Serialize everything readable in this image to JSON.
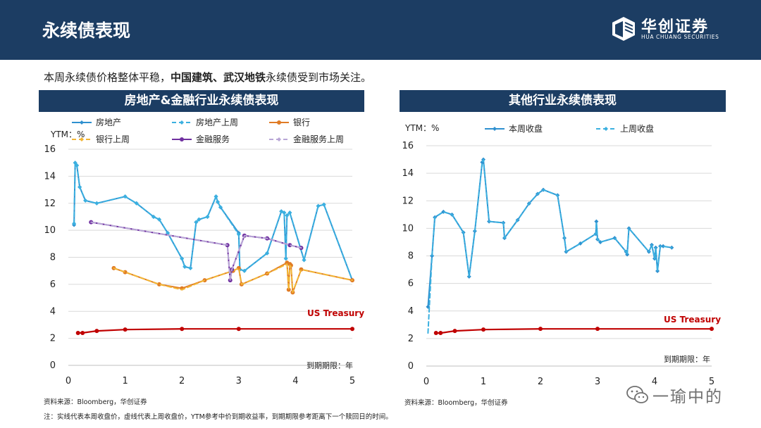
{
  "header": {
    "title": "永续债表现"
  },
  "logo": {
    "cn": "华创证券",
    "en": "HUA CHUANG SECURITIES"
  },
  "intro": {
    "part1": "本周永续债价格整体平稳，",
    "bold": "中国建筑、武汉地铁",
    "part2": "永续债受到市场关注。"
  },
  "colors": {
    "navy": "#1c3d63",
    "blue": "#2e90cf",
    "blue_light": "#3bb0e0",
    "orange": "#e07b24",
    "yellow": "#f2b535",
    "purple": "#7030a0",
    "lavender": "#b8a6d6",
    "red": "#c00000"
  },
  "chart_data": [
    {
      "type": "line",
      "title": "房地产&金融行业永续债表现",
      "ylabel": "YTM：%",
      "xlabel": "到期期限：年",
      "xlim": [
        0,
        5
      ],
      "ylim": [
        0,
        16
      ],
      "xticks": [
        0,
        1,
        2,
        3,
        4,
        5
      ],
      "yticks": [
        0,
        2,
        4,
        6,
        8,
        10,
        12,
        14,
        16
      ],
      "grid": "horizontal",
      "legend": "top",
      "annotation": "US Treasury",
      "series": [
        {
          "name": "房地产",
          "color": "#2e90cf",
          "dash": false,
          "marker": "diamond",
          "x": [
            0.1,
            0.12,
            0.15,
            0.2,
            0.3,
            0.5,
            1.0,
            1.2,
            1.5,
            1.6,
            1.75,
            2.0,
            2.05,
            2.15,
            2.25,
            2.3,
            2.45,
            2.6,
            2.63,
            2.68,
            3.0,
            3.02,
            3.1,
            3.5,
            3.75,
            3.8,
            3.83,
            3.85,
            3.9,
            4.15,
            4.4,
            4.5,
            5.0
          ],
          "y": [
            10.4,
            15.0,
            14.8,
            13.2,
            12.2,
            12.0,
            12.5,
            12.0,
            11.0,
            10.8,
            9.8,
            7.9,
            7.3,
            7.2,
            10.6,
            10.8,
            11.0,
            12.5,
            12.1,
            11.7,
            9.8,
            7.1,
            7.0,
            8.3,
            11.4,
            11.3,
            7.9,
            11.1,
            11.3,
            7.8,
            11.8,
            11.9,
            6.3
          ]
        },
        {
          "name": "房地产上周",
          "color": "#3bb0e0",
          "dash": true,
          "marker": "diamond",
          "x": [
            0.1,
            0.12,
            0.15,
            0.2,
            0.3,
            0.5,
            1.0,
            1.2,
            1.5,
            1.6,
            1.75,
            2.0,
            2.05,
            2.15,
            2.25,
            2.3,
            2.45,
            2.6,
            2.63,
            2.68,
            3.0,
            3.02,
            3.1,
            3.5,
            3.75,
            3.8,
            3.83,
            3.85,
            3.9,
            4.15,
            4.4,
            4.5,
            5.0
          ],
          "y": [
            10.5,
            15.0,
            14.8,
            13.2,
            12.2,
            12.0,
            12.5,
            12.0,
            11.0,
            10.8,
            9.8,
            7.9,
            7.3,
            7.2,
            10.6,
            10.8,
            11.0,
            12.5,
            12.1,
            11.7,
            9.7,
            7.1,
            7.0,
            8.3,
            11.4,
            11.3,
            7.9,
            11.1,
            11.3,
            7.8,
            11.8,
            11.9,
            6.3
          ]
        },
        {
          "name": "银行",
          "color": "#e07b24",
          "dash": false,
          "marker": "circle",
          "x": [
            0.8,
            1.0,
            1.6,
            2.0,
            2.4,
            2.9,
            3.0,
            3.05,
            3.5,
            3.85,
            3.88,
            3.9,
            3.92,
            3.95,
            4.1,
            5.0
          ],
          "y": [
            7.2,
            6.9,
            6.0,
            5.7,
            6.3,
            7.0,
            7.2,
            6.0,
            6.8,
            7.6,
            5.6,
            7.5,
            7.4,
            5.4,
            7.1,
            6.3
          ]
        },
        {
          "name": "银行上周",
          "color": "#f2b535",
          "dash": true,
          "marker": "none",
          "x": [
            0.8,
            1.0,
            1.6,
            2.0,
            2.4,
            2.9,
            3.0,
            3.05,
            3.5,
            3.85,
            3.88,
            3.9,
            3.92,
            3.95,
            4.1,
            5.0
          ],
          "y": [
            7.2,
            6.9,
            6.0,
            5.6,
            6.3,
            7.0,
            7.2,
            6.0,
            6.8,
            7.5,
            5.6,
            7.4,
            7.3,
            5.4,
            7.1,
            6.3
          ]
        },
        {
          "name": "金融服务",
          "color": "#7030a0",
          "dash": false,
          "marker": "circle",
          "x": [
            0.4,
            2.8,
            2.85,
            2.88,
            3.1,
            3.5,
            3.9,
            4.1
          ],
          "y": [
            10.6,
            8.9,
            6.3,
            7.1,
            9.6,
            9.4,
            8.9,
            8.7
          ]
        },
        {
          "name": "金融服务上周",
          "color": "#b8a6d6",
          "dash": true,
          "marker": "none",
          "x": [
            0.4,
            2.8,
            2.85,
            2.88,
            3.1,
            3.5,
            3.9,
            4.1
          ],
          "y": [
            10.6,
            8.9,
            6.3,
            7.1,
            9.6,
            9.4,
            8.9,
            8.7
          ]
        },
        {
          "name": "US Treasury",
          "color": "#c00000",
          "dash": false,
          "marker": "circle",
          "x": [
            0.17,
            0.25,
            0.5,
            1.0,
            2.0,
            3.0,
            5.0
          ],
          "y": [
            2.4,
            2.4,
            2.55,
            2.65,
            2.7,
            2.7,
            2.7
          ]
        }
      ]
    },
    {
      "type": "line",
      "title": "其他行业永续债表现",
      "ylabel": "YTM：%",
      "xlabel": "到期期限：年",
      "xlim": [
        0,
        5
      ],
      "ylim": [
        0,
        16
      ],
      "xticks": [
        0,
        1,
        2,
        3,
        4,
        5
      ],
      "yticks": [
        0,
        2,
        4,
        6,
        8,
        10,
        12,
        14,
        16
      ],
      "grid": "horizontal",
      "legend": "top",
      "annotation": "US Treasury",
      "series": [
        {
          "name": "本周收盘",
          "color": "#2e90cf",
          "dash": false,
          "marker": "diamond",
          "x": [
            0.03,
            0.1,
            0.15,
            0.3,
            0.45,
            0.65,
            0.75,
            0.85,
            0.98,
            1.0,
            1.1,
            1.35,
            1.37,
            1.6,
            1.8,
            1.95,
            2.05,
            2.3,
            2.42,
            2.45,
            2.7,
            2.97,
            2.98,
            3.0,
            3.05,
            3.3,
            3.5,
            3.52,
            3.55,
            3.9,
            3.95,
            4.0,
            4.02,
            4.05,
            4.1,
            4.15,
            4.3
          ],
          "y": [
            4.3,
            8.0,
            10.8,
            11.2,
            11.0,
            9.7,
            6.5,
            9.8,
            14.8,
            15.0,
            10.5,
            10.4,
            9.3,
            10.6,
            11.8,
            12.5,
            12.8,
            12.4,
            9.3,
            8.3,
            8.9,
            9.6,
            10.5,
            9.2,
            9.0,
            9.3,
            8.3,
            8.1,
            10.0,
            8.3,
            8.8,
            7.8,
            8.6,
            6.9,
            8.7,
            8.7,
            8.6
          ]
        },
        {
          "name": "上周收盘",
          "color": "#3bb0e0",
          "dash": true,
          "marker": "none",
          "x": [
            0.03,
            0.1,
            0.15,
            0.3,
            0.45,
            0.65,
            0.75,
            0.85,
            0.98,
            1.0,
            1.1,
            1.35,
            1.37,
            1.6,
            1.8,
            1.95,
            2.05,
            2.3,
            2.42,
            2.45,
            2.7,
            2.97,
            2.98,
            3.0,
            3.05,
            3.3,
            3.5,
            3.52,
            3.55,
            3.9,
            3.95,
            4.0,
            4.02,
            4.05,
            4.1,
            4.15,
            4.3
          ],
          "y": [
            2.4,
            8.0,
            10.8,
            11.2,
            11.0,
            9.7,
            6.5,
            9.8,
            14.8,
            15.0,
            10.5,
            10.4,
            9.3,
            10.6,
            11.8,
            12.5,
            12.8,
            12.4,
            9.3,
            8.3,
            8.9,
            9.6,
            10.4,
            9.2,
            9.0,
            9.3,
            8.3,
            8.1,
            10.0,
            8.3,
            8.8,
            7.8,
            8.6,
            6.9,
            8.7,
            8.7,
            8.6
          ]
        },
        {
          "name": "US Treasury",
          "color": "#c00000",
          "dash": false,
          "marker": "circle",
          "x": [
            0.17,
            0.25,
            0.5,
            1.0,
            2.0,
            3.0,
            5.0
          ],
          "y": [
            2.4,
            2.4,
            2.55,
            2.65,
            2.7,
            2.7,
            2.7
          ]
        }
      ]
    }
  ],
  "footer": {
    "source_left": "资料来源：Bloomberg，华创证券",
    "source_right": "资料来源：Bloomberg，华创证券",
    "note": "注：实线代表本周收盘价，虚线代表上周收盘价，YTM参考中价到期收益率，到期期限参考距离下一个赎回日的时间。"
  },
  "watermark": {
    "text": "一瑜中的",
    "icon": "wechat-icon"
  }
}
